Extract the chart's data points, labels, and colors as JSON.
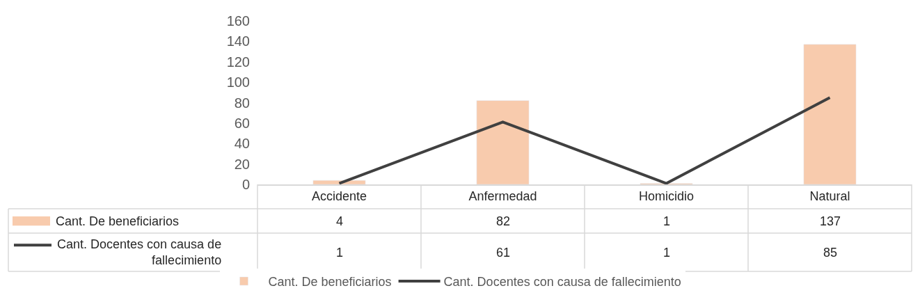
{
  "chart_data": {
    "type": "bar",
    "categories": [
      "Accidente",
      "Anfermedad",
      "Homicidio",
      "Natural"
    ],
    "series": [
      {
        "name": "Cant. De beneficiarios",
        "color": "#f8cbad",
        "values": [
          4,
          82,
          1,
          137
        ]
      },
      {
        "name": "Cant. Docentes con causa de fallecimiento",
        "type": "line",
        "color": "#404040",
        "values": [
          1,
          61,
          1,
          85
        ]
      }
    ],
    "ylim": [
      0,
      160
    ],
    "yticks": [
      0,
      20,
      40,
      60,
      80,
      100,
      120,
      140,
      160
    ],
    "legend": "bottom",
    "data_labels": true,
    "marker": "none"
  }
}
